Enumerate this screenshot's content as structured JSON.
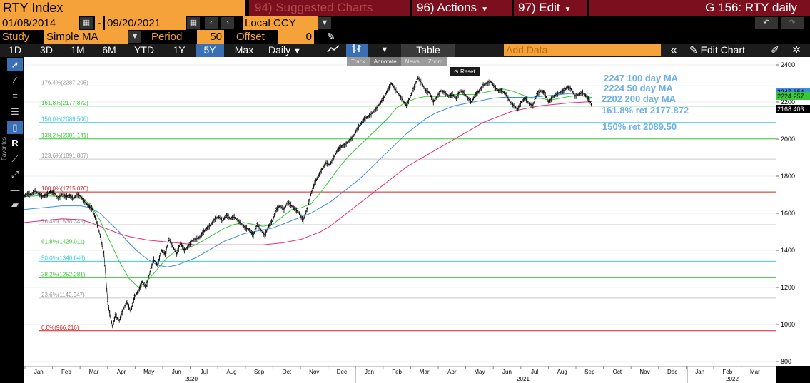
{
  "header": {
    "security": "RTY Index",
    "suggested": "94) Suggested Charts",
    "actions": "96) Actions",
    "edit": "97) Edit",
    "title": "G 156: RTY daily"
  },
  "dates": {
    "start": "01/08/2014",
    "sep": "-",
    "end": "09/20/2021",
    "currency": "Local CCY"
  },
  "study": {
    "label": "Study",
    "value": "Simple MA",
    "period_label": "Period",
    "period": "50",
    "offset_label": "Offset",
    "offset": "0"
  },
  "toolbar": {
    "ranges": [
      "1D",
      "3D",
      "1M",
      "6M",
      "YTD",
      "1Y",
      "5Y",
      "Max"
    ],
    "selected_range": "5Y",
    "frequency": "Daily",
    "table": "Table",
    "add_data": "Add Data",
    "edit_chart": "Edit Chart"
  },
  "mini_toolbar": {
    "track": "Track",
    "annotate": "Annotate",
    "news": "News",
    "zoom": "Zoom",
    "reset": "Reset"
  },
  "left_tools": {
    "favorites": "Favorites",
    "r_label": "R"
  },
  "chart_data": {
    "type": "line",
    "y_ticks": [
      "2400",
      "2200",
      "2000",
      "1800",
      "1600",
      "1400",
      "1200",
      "1000",
      "800"
    ],
    "ylim": [
      800,
      2400
    ],
    "x_month_labels": [
      "Jan",
      "Feb",
      "Mar",
      "Apr",
      "May",
      "Jun",
      "Jul",
      "Aug",
      "Sep",
      "Oct",
      "Nov",
      "Dec",
      "Jan",
      "Feb",
      "Mar",
      "Apr",
      "May",
      "Jun",
      "Jul",
      "Aug",
      "Sep",
      "Oct",
      "Nov",
      "Dec",
      "Jan",
      "Feb",
      "Mar"
    ],
    "x_year_labels": [
      "2020",
      "2021",
      "2022"
    ],
    "fib_levels": [
      {
        "label": "176.4%(2287.205)",
        "value": 2287.205,
        "color": "#c8c8c8"
      },
      {
        "label": "161.8%(2177.872)",
        "value": 2177.872,
        "color": "#37c837"
      },
      {
        "label": "150.0%(2089.506)",
        "value": 2089.506,
        "color": "#40c8e0"
      },
      {
        "label": "138.2%(2001.141)",
        "value": 2001.141,
        "color": "#37c837"
      },
      {
        "label": "123.6%(1891.807)",
        "value": 1891.807,
        "color": "#c8c8c8"
      },
      {
        "label": "100.0%(1715.076)",
        "value": 1715.076,
        "color": "#d02020"
      },
      {
        "label": "76.4%(1538.345)",
        "value": 1538.345,
        "color": "#c8c8c8"
      },
      {
        "label": "61.8%(1429.011)",
        "value": 1429.011,
        "color": "#37c837"
      },
      {
        "label": "50.0%(1340.646)",
        "value": 1340.646,
        "color": "#40c8e0"
      },
      {
        "label": "38.2%(1252.281)",
        "value": 1252.281,
        "color": "#37c837"
      },
      {
        "label": "23.6%(1142.947)",
        "value": 1142.947,
        "color": "#c8c8c8"
      },
      {
        "label": "0.0%(966.216)",
        "value": 966.216,
        "color": "#d02020"
      }
    ],
    "last_values": [
      {
        "label": "2247.354",
        "value": 2247.354,
        "color": "#3b8fe0"
      },
      {
        "label": "2224.257",
        "value": 2224.257,
        "color": "#37c837"
      },
      {
        "label": "2168.403",
        "value": 2168.403,
        "color": "#000000"
      }
    ],
    "annotations": [
      {
        "text": "2247  100 day MA",
        "color": "#6fb0e8"
      },
      {
        "text": "2224 50 day MA",
        "color": "#6fb0e8"
      },
      {
        "text": "2202 200 day MA",
        "color": "#6fb0e8"
      },
      {
        "text": "161.8% ret 2177.872",
        "color": "#6fb0e8"
      },
      {
        "text": "150% ret 2089.50",
        "color": "#6fb0e8"
      }
    ],
    "price": [
      [
        0,
        1690
      ],
      [
        4,
        1705
      ],
      [
        8,
        1700
      ],
      [
        12,
        1720
      ],
      [
        16,
        1705
      ],
      [
        20,
        1690
      ],
      [
        24,
        1700
      ],
      [
        28,
        1715
      ],
      [
        32,
        1710
      ],
      [
        36,
        1680
      ],
      [
        40,
        1700
      ],
      [
        44,
        1690
      ],
      [
        48,
        1695
      ],
      [
        52,
        1680
      ],
      [
        56,
        1700
      ],
      [
        60,
        1690
      ],
      [
        64,
        1660
      ],
      [
        68,
        1640
      ],
      [
        72,
        1620
      ],
      [
        76,
        1560
      ],
      [
        80,
        1480
      ],
      [
        84,
        1380
      ],
      [
        86,
        1250
      ],
      [
        88,
        1120
      ],
      [
        90,
        1060
      ],
      [
        93,
        990
      ],
      [
        96,
        1050
      ],
      [
        100,
        1020
      ],
      [
        104,
        1080
      ],
      [
        108,
        1120
      ],
      [
        112,
        1070
      ],
      [
        116,
        1150
      ],
      [
        120,
        1180
      ],
      [
        124,
        1230
      ],
      [
        128,
        1200
      ],
      [
        132,
        1280
      ],
      [
        136,
        1350
      ],
      [
        140,
        1320
      ],
      [
        144,
        1400
      ],
      [
        148,
        1380
      ],
      [
        152,
        1460
      ],
      [
        156,
        1420
      ],
      [
        160,
        1380
      ],
      [
        164,
        1440
      ],
      [
        168,
        1400
      ],
      [
        172,
        1420
      ],
      [
        176,
        1450
      ],
      [
        180,
        1460
      ],
      [
        184,
        1470
      ],
      [
        188,
        1500
      ],
      [
        192,
        1520
      ],
      [
        196,
        1540
      ],
      [
        200,
        1570
      ],
      [
        204,
        1580
      ],
      [
        208,
        1560
      ],
      [
        212,
        1590
      ],
      [
        216,
        1570
      ],
      [
        220,
        1580
      ],
      [
        224,
        1560
      ],
      [
        228,
        1540
      ],
      [
        232,
        1520
      ],
      [
        236,
        1510
      ],
      [
        240,
        1480
      ],
      [
        244,
        1540
      ],
      [
        248,
        1510
      ],
      [
        252,
        1480
      ],
      [
        256,
        1530
      ],
      [
        260,
        1560
      ],
      [
        264,
        1620
      ],
      [
        268,
        1640
      ],
      [
        272,
        1620
      ],
      [
        276,
        1660
      ],
      [
        280,
        1640
      ],
      [
        284,
        1620
      ],
      [
        288,
        1600
      ],
      [
        292,
        1560
      ],
      [
        296,
        1620
      ],
      [
        300,
        1700
      ],
      [
        304,
        1760
      ],
      [
        308,
        1800
      ],
      [
        312,
        1840
      ],
      [
        316,
        1870
      ],
      [
        320,
        1860
      ],
      [
        324,
        1900
      ],
      [
        328,
        1940
      ],
      [
        332,
        1960
      ],
      [
        336,
        1970
      ],
      [
        340,
        1990
      ],
      [
        344,
        2010
      ],
      [
        348,
        2050
      ],
      [
        352,
        2080
      ],
      [
        356,
        2110
      ],
      [
        360,
        2120
      ],
      [
        364,
        2140
      ],
      [
        368,
        2160
      ],
      [
        372,
        2190
      ],
      [
        376,
        2220
      ],
      [
        380,
        2260
      ],
      [
        384,
        2300
      ],
      [
        388,
        2270
      ],
      [
        392,
        2240
      ],
      [
        396,
        2210
      ],
      [
        400,
        2180
      ],
      [
        404,
        2230
      ],
      [
        408,
        2280
      ],
      [
        412,
        2330
      ],
      [
        416,
        2300
      ],
      [
        420,
        2260
      ],
      [
        424,
        2250
      ],
      [
        428,
        2200
      ],
      [
        432,
        2230
      ],
      [
        436,
        2260
      ],
      [
        440,
        2250
      ],
      [
        444,
        2230
      ],
      [
        448,
        2240
      ],
      [
        452,
        2220
      ],
      [
        456,
        2260
      ],
      [
        460,
        2250
      ],
      [
        464,
        2220
      ],
      [
        468,
        2200
      ],
      [
        472,
        2240
      ],
      [
        476,
        2260
      ],
      [
        480,
        2290
      ],
      [
        484,
        2300
      ],
      [
        488,
        2310
      ],
      [
        492,
        2280
      ],
      [
        496,
        2260
      ],
      [
        500,
        2260
      ],
      [
        504,
        2240
      ],
      [
        508,
        2200
      ],
      [
        512,
        2180
      ],
      [
        516,
        2160
      ],
      [
        520,
        2200
      ],
      [
        524,
        2220
      ],
      [
        528,
        2190
      ],
      [
        532,
        2180
      ],
      [
        536,
        2240
      ],
      [
        540,
        2260
      ],
      [
        544,
        2250
      ],
      [
        548,
        2200
      ],
      [
        552,
        2220
      ],
      [
        556,
        2240
      ],
      [
        560,
        2250
      ],
      [
        564,
        2260
      ],
      [
        568,
        2280
      ],
      [
        572,
        2270
      ],
      [
        576,
        2230
      ],
      [
        580,
        2240
      ],
      [
        584,
        2250
      ],
      [
        588,
        2230
      ],
      [
        592,
        2200
      ],
      [
        594,
        2168
      ]
    ],
    "ma50": [
      [
        0,
        1690
      ],
      [
        20,
        1695
      ],
      [
        40,
        1690
      ],
      [
        60,
        1680
      ],
      [
        70,
        1650
      ],
      [
        80,
        1560
      ],
      [
        90,
        1450
      ],
      [
        100,
        1340
      ],
      [
        110,
        1250
      ],
      [
        120,
        1200
      ],
      [
        130,
        1240
      ],
      [
        140,
        1300
      ],
      [
        150,
        1360
      ],
      [
        160,
        1400
      ],
      [
        170,
        1410
      ],
      [
        180,
        1430
      ],
      [
        190,
        1460
      ],
      [
        200,
        1490
      ],
      [
        210,
        1520
      ],
      [
        220,
        1540
      ],
      [
        230,
        1550
      ],
      [
        240,
        1540
      ],
      [
        250,
        1530
      ],
      [
        260,
        1540
      ],
      [
        270,
        1580
      ],
      [
        280,
        1620
      ],
      [
        290,
        1630
      ],
      [
        300,
        1650
      ],
      [
        310,
        1710
      ],
      [
        320,
        1780
      ],
      [
        330,
        1850
      ],
      [
        340,
        1910
      ],
      [
        350,
        1960
      ],
      [
        360,
        2010
      ],
      [
        370,
        2060
      ],
      [
        380,
        2110
      ],
      [
        390,
        2170
      ],
      [
        400,
        2200
      ],
      [
        410,
        2220
      ],
      [
        420,
        2230
      ],
      [
        430,
        2230
      ],
      [
        440,
        2230
      ],
      [
        450,
        2240
      ],
      [
        460,
        2240
      ],
      [
        470,
        2240
      ],
      [
        480,
        2250
      ],
      [
        490,
        2260
      ],
      [
        500,
        2270
      ],
      [
        510,
        2260
      ],
      [
        520,
        2240
      ],
      [
        530,
        2220
      ],
      [
        540,
        2220
      ],
      [
        550,
        2210
      ],
      [
        560,
        2220
      ],
      [
        570,
        2230
      ],
      [
        580,
        2235
      ],
      [
        590,
        2227
      ],
      [
        594,
        2224
      ]
    ],
    "ma100": [
      [
        0,
        1620
      ],
      [
        20,
        1630
      ],
      [
        40,
        1640
      ],
      [
        60,
        1640
      ],
      [
        70,
        1630
      ],
      [
        80,
        1600
      ],
      [
        90,
        1550
      ],
      [
        100,
        1500
      ],
      [
        110,
        1440
      ],
      [
        120,
        1390
      ],
      [
        130,
        1350
      ],
      [
        140,
        1320
      ],
      [
        150,
        1310
      ],
      [
        160,
        1320
      ],
      [
        170,
        1340
      ],
      [
        180,
        1360
      ],
      [
        190,
        1390
      ],
      [
        200,
        1420
      ],
      [
        210,
        1450
      ],
      [
        220,
        1470
      ],
      [
        230,
        1490
      ],
      [
        240,
        1500
      ],
      [
        250,
        1510
      ],
      [
        260,
        1520
      ],
      [
        270,
        1540
      ],
      [
        280,
        1560
      ],
      [
        290,
        1580
      ],
      [
        300,
        1600
      ],
      [
        310,
        1630
      ],
      [
        320,
        1660
      ],
      [
        330,
        1700
      ],
      [
        340,
        1740
      ],
      [
        350,
        1780
      ],
      [
        360,
        1830
      ],
      [
        370,
        1880
      ],
      [
        380,
        1930
      ],
      [
        390,
        1980
      ],
      [
        400,
        2030
      ],
      [
        410,
        2070
      ],
      [
        420,
        2110
      ],
      [
        430,
        2140
      ],
      [
        440,
        2160
      ],
      [
        450,
        2180
      ],
      [
        460,
        2190
      ],
      [
        470,
        2200
      ],
      [
        480,
        2210
      ],
      [
        490,
        2220
      ],
      [
        500,
        2225
      ],
      [
        510,
        2225
      ],
      [
        520,
        2225
      ],
      [
        530,
        2225
      ],
      [
        540,
        2230
      ],
      [
        550,
        2235
      ],
      [
        560,
        2240
      ],
      [
        570,
        2245
      ],
      [
        580,
        2248
      ],
      [
        590,
        2247
      ],
      [
        594,
        2247
      ]
    ],
    "ma200": [
      [
        0,
        1550
      ],
      [
        20,
        1560
      ],
      [
        40,
        1570
      ],
      [
        60,
        1565
      ],
      [
        70,
        1550
      ],
      [
        80,
        1530
      ],
      [
        90,
        1510
      ],
      [
        100,
        1490
      ],
      [
        110,
        1475
      ],
      [
        120,
        1465
      ],
      [
        130,
        1455
      ],
      [
        140,
        1450
      ],
      [
        150,
        1445
      ],
      [
        160,
        1440
      ],
      [
        170,
        1435
      ],
      [
        180,
        1430
      ],
      [
        190,
        1430
      ],
      [
        200,
        1430
      ],
      [
        210,
        1430
      ],
      [
        220,
        1430
      ],
      [
        230,
        1430
      ],
      [
        240,
        1430
      ],
      [
        250,
        1430
      ],
      [
        260,
        1435
      ],
      [
        270,
        1440
      ],
      [
        280,
        1450
      ],
      [
        290,
        1460
      ],
      [
        300,
        1480
      ],
      [
        310,
        1500
      ],
      [
        320,
        1530
      ],
      [
        330,
        1570
      ],
      [
        340,
        1610
      ],
      [
        350,
        1650
      ],
      [
        360,
        1690
      ],
      [
        370,
        1730
      ],
      [
        380,
        1770
      ],
      [
        390,
        1810
      ],
      [
        400,
        1850
      ],
      [
        410,
        1880
      ],
      [
        420,
        1910
      ],
      [
        430,
        1940
      ],
      [
        440,
        1970
      ],
      [
        450,
        2000
      ],
      [
        460,
        2030
      ],
      [
        470,
        2060
      ],
      [
        480,
        2090
      ],
      [
        490,
        2110
      ],
      [
        500,
        2130
      ],
      [
        510,
        2150
      ],
      [
        520,
        2160
      ],
      [
        530,
        2170
      ],
      [
        540,
        2180
      ],
      [
        550,
        2185
      ],
      [
        560,
        2190
      ],
      [
        570,
        2195
      ],
      [
        580,
        2198
      ],
      [
        590,
        2201
      ],
      [
        594,
        2202
      ]
    ],
    "x_range": [
      0,
      1054
    ]
  },
  "colors": {
    "ma50": "#37c837",
    "ma100": "#3b8fe0",
    "ma200": "#e0307a",
    "price": "#000000",
    "orange": "#f5a23a",
    "maroon": "#7b0f1d",
    "selected": "#3b6fb3"
  }
}
